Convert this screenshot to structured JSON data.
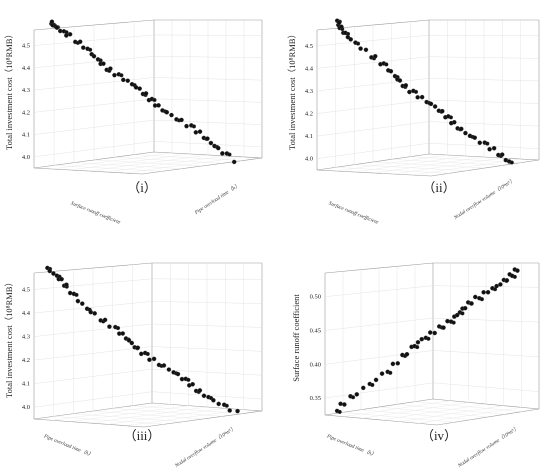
{
  "chart_data": [
    {
      "type": "scatter",
      "panel_label": "（i）",
      "zlabel": "Total investment cost（10⁸RMB）",
      "z_ticks": [
        "4.0",
        "4.1",
        "4.2",
        "4.3",
        "4.4",
        "4.5"
      ],
      "zlim": [
        4.0,
        4.5
      ],
      "floor_left_label": "Surface runoff coefficient",
      "floor_right_label": "Pipe overload time（h）",
      "points": [
        [
          0.0,
          4.49
        ],
        [
          0.01,
          4.48
        ],
        [
          0.02,
          4.47
        ],
        [
          0.04,
          4.46
        ],
        [
          0.05,
          4.45
        ],
        [
          0.07,
          4.44
        ],
        [
          0.09,
          4.43
        ],
        [
          0.1,
          4.42
        ],
        [
          0.12,
          4.41
        ],
        [
          0.15,
          4.4
        ],
        [
          0.18,
          4.38
        ],
        [
          0.2,
          4.37
        ],
        [
          0.23,
          4.36
        ],
        [
          0.26,
          4.35
        ],
        [
          0.28,
          4.34
        ],
        [
          0.31,
          4.33
        ],
        [
          0.33,
          4.32
        ],
        [
          0.35,
          4.31
        ],
        [
          0.37,
          4.305
        ],
        [
          0.39,
          4.3
        ],
        [
          0.41,
          4.29
        ],
        [
          0.43,
          4.285
        ],
        [
          0.45,
          4.28
        ],
        [
          0.47,
          4.27
        ],
        [
          0.49,
          4.265
        ],
        [
          0.51,
          4.26
        ],
        [
          0.53,
          4.25
        ],
        [
          0.55,
          4.245
        ],
        [
          0.57,
          4.24
        ],
        [
          0.59,
          4.235
        ],
        [
          0.61,
          4.23
        ],
        [
          0.63,
          4.225
        ],
        [
          0.65,
          4.22
        ],
        [
          0.67,
          4.215
        ],
        [
          0.69,
          4.21
        ],
        [
          0.71,
          4.205
        ],
        [
          0.73,
          4.2
        ],
        [
          0.75,
          4.195
        ],
        [
          0.77,
          4.19
        ],
        [
          0.79,
          4.185
        ],
        [
          0.81,
          4.18
        ],
        [
          0.83,
          4.175
        ],
        [
          0.85,
          4.17
        ],
        [
          0.87,
          4.165
        ],
        [
          0.89,
          4.16
        ],
        [
          0.91,
          4.155
        ],
        [
          0.93,
          4.15
        ],
        [
          0.95,
          4.145
        ],
        [
          0.97,
          4.14
        ],
        [
          1.0,
          4.135
        ]
      ]
    },
    {
      "type": "scatter",
      "panel_label": "（ii）",
      "zlabel": "Total investment cost（10⁸RMB）",
      "z_ticks": [
        "4.0",
        "4.1",
        "4.2",
        "4.3",
        "4.4",
        "4.5"
      ],
      "zlim": [
        4.0,
        4.5
      ],
      "floor_left_label": "Surface runoff coefficient",
      "floor_right_label": "Nodal overflow volume（10⁴m³）",
      "points": [
        [
          0.0,
          4.5
        ],
        [
          0.01,
          4.49
        ],
        [
          0.02,
          4.48
        ],
        [
          0.03,
          4.47
        ],
        [
          0.05,
          4.46
        ],
        [
          0.07,
          4.45
        ],
        [
          0.09,
          4.44
        ],
        [
          0.11,
          4.43
        ],
        [
          0.13,
          4.42
        ],
        [
          0.16,
          4.4
        ],
        [
          0.19,
          4.39
        ],
        [
          0.22,
          4.38
        ],
        [
          0.25,
          4.37
        ],
        [
          0.27,
          4.36
        ],
        [
          0.3,
          4.35
        ],
        [
          0.32,
          4.34
        ],
        [
          0.35,
          4.33
        ],
        [
          0.37,
          4.32
        ],
        [
          0.4,
          4.31
        ],
        [
          0.42,
          4.3
        ],
        [
          0.44,
          4.29
        ],
        [
          0.46,
          4.285
        ],
        [
          0.48,
          4.28
        ],
        [
          0.5,
          4.27
        ],
        [
          0.52,
          4.26
        ],
        [
          0.54,
          4.25
        ],
        [
          0.56,
          4.245
        ],
        [
          0.58,
          4.24
        ],
        [
          0.6,
          4.23
        ],
        [
          0.62,
          4.225
        ],
        [
          0.64,
          4.22
        ],
        [
          0.66,
          4.21
        ],
        [
          0.68,
          4.205
        ],
        [
          0.7,
          4.2
        ],
        [
          0.72,
          4.195
        ],
        [
          0.74,
          4.19
        ],
        [
          0.76,
          4.185
        ],
        [
          0.78,
          4.18
        ],
        [
          0.8,
          4.175
        ],
        [
          0.82,
          4.17
        ],
        [
          0.84,
          4.165
        ],
        [
          0.86,
          4.16
        ],
        [
          0.88,
          4.155
        ],
        [
          0.9,
          4.15
        ],
        [
          0.92,
          4.145
        ],
        [
          0.94,
          4.14
        ],
        [
          0.96,
          4.135
        ],
        [
          0.98,
          4.13
        ],
        [
          1.0,
          4.125
        ]
      ]
    },
    {
      "type": "scatter",
      "panel_label": "（iii）",
      "zlabel": "Total investment cost（10⁸RMB）",
      "z_ticks": [
        "4.0",
        "4.1",
        "4.2",
        "4.3",
        "4.4",
        "4.5"
      ],
      "zlim": [
        4.0,
        4.5
      ],
      "floor_left_label": "Pipe overload time（h）",
      "floor_right_label": "Nodal overflow volume（10⁴m³）",
      "points": [
        [
          0.0,
          4.49
        ],
        [
          0.01,
          4.48
        ],
        [
          0.03,
          4.47
        ],
        [
          0.05,
          4.46
        ],
        [
          0.06,
          4.45
        ],
        [
          0.08,
          4.44
        ],
        [
          0.1,
          4.43
        ],
        [
          0.12,
          4.42
        ],
        [
          0.15,
          4.41
        ],
        [
          0.18,
          4.39
        ],
        [
          0.21,
          4.38
        ],
        [
          0.24,
          4.37
        ],
        [
          0.27,
          4.36
        ],
        [
          0.29,
          4.35
        ],
        [
          0.31,
          4.34
        ],
        [
          0.34,
          4.33
        ],
        [
          0.36,
          4.32
        ],
        [
          0.38,
          4.31
        ],
        [
          0.41,
          4.3
        ],
        [
          0.43,
          4.29
        ],
        [
          0.45,
          4.28
        ],
        [
          0.47,
          4.275
        ],
        [
          0.49,
          4.27
        ],
        [
          0.51,
          4.26
        ],
        [
          0.53,
          4.255
        ],
        [
          0.55,
          4.25
        ],
        [
          0.57,
          4.24
        ],
        [
          0.59,
          4.235
        ],
        [
          0.61,
          4.23
        ],
        [
          0.63,
          4.22
        ],
        [
          0.65,
          4.215
        ],
        [
          0.67,
          4.21
        ],
        [
          0.69,
          4.205
        ],
        [
          0.71,
          4.2
        ],
        [
          0.73,
          4.19
        ],
        [
          0.75,
          4.185
        ],
        [
          0.77,
          4.18
        ],
        [
          0.79,
          4.175
        ],
        [
          0.81,
          4.17
        ],
        [
          0.83,
          4.165
        ],
        [
          0.85,
          4.16
        ],
        [
          0.87,
          4.155
        ],
        [
          0.89,
          4.15
        ],
        [
          0.91,
          4.145
        ],
        [
          0.93,
          4.14
        ],
        [
          0.95,
          4.135
        ],
        [
          0.97,
          4.13
        ],
        [
          1.0,
          4.125
        ]
      ]
    },
    {
      "type": "scatter",
      "panel_label": "（iv）",
      "zlabel": "Surface runoff coefficient",
      "z_ticks": [
        "0.35",
        "0.40",
        "0.45",
        "0.50"
      ],
      "zlim": [
        0.34,
        0.52
      ],
      "floor_left_label": "Pipe overload time（h）",
      "floor_right_label": "Nodal overflow volume（10⁴m³）",
      "points": [
        [
          0.0,
          0.352
        ],
        [
          0.02,
          0.356
        ],
        [
          0.04,
          0.36
        ],
        [
          0.07,
          0.366
        ],
        [
          0.1,
          0.372
        ],
        [
          0.13,
          0.378
        ],
        [
          0.16,
          0.384
        ],
        [
          0.19,
          0.39
        ],
        [
          0.22,
          0.396
        ],
        [
          0.25,
          0.402
        ],
        [
          0.28,
          0.408
        ],
        [
          0.31,
          0.414
        ],
        [
          0.34,
          0.42
        ],
        [
          0.37,
          0.426
        ],
        [
          0.4,
          0.432
        ],
        [
          0.42,
          0.437
        ],
        [
          0.44,
          0.441
        ],
        [
          0.46,
          0.445
        ],
        [
          0.48,
          0.449
        ],
        [
          0.5,
          0.453
        ],
        [
          0.52,
          0.457
        ],
        [
          0.54,
          0.461
        ],
        [
          0.56,
          0.465
        ],
        [
          0.58,
          0.469
        ],
        [
          0.6,
          0.472
        ],
        [
          0.62,
          0.475
        ],
        [
          0.64,
          0.478
        ],
        [
          0.66,
          0.481
        ],
        [
          0.68,
          0.484
        ],
        [
          0.7,
          0.487
        ],
        [
          0.72,
          0.49
        ],
        [
          0.74,
          0.493
        ],
        [
          0.76,
          0.496
        ],
        [
          0.78,
          0.499
        ],
        [
          0.8,
          0.502
        ],
        [
          0.82,
          0.505
        ],
        [
          0.84,
          0.508
        ],
        [
          0.86,
          0.51
        ],
        [
          0.88,
          0.512
        ],
        [
          0.9,
          0.514
        ],
        [
          0.92,
          0.516
        ],
        [
          0.94,
          0.518
        ],
        [
          0.96,
          0.519
        ],
        [
          0.98,
          0.52
        ],
        [
          1.0,
          0.521
        ]
      ]
    }
  ]
}
